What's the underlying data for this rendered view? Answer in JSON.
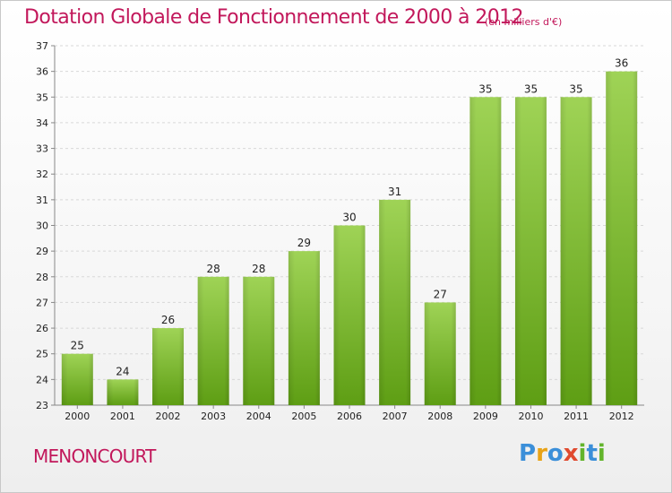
{
  "header": {
    "title": "Dotation Globale de Fonctionnement de 2000 à 2012",
    "unit": "(en milliers d'€)"
  },
  "footer": {
    "commune": "MENONCOURT",
    "logo": "Proxiti"
  },
  "colors": {
    "title": "#c2185b",
    "bar_top": "#9fd356",
    "bar_bottom": "#5e9e14",
    "grid": "#d8d8d8",
    "axis": "#888888",
    "tick_text": "#222222"
  },
  "chart_data": {
    "type": "bar",
    "title": "Dotation Globale de Fonctionnement de 2000 à 2012",
    "xlabel": "",
    "ylabel": "",
    "categories": [
      "2000",
      "2001",
      "2002",
      "2003",
      "2004",
      "2005",
      "2006",
      "2007",
      "2008",
      "2009",
      "2010",
      "2011",
      "2012"
    ],
    "values": [
      25,
      24,
      26,
      28,
      28,
      29,
      30,
      31,
      27,
      35,
      35,
      35,
      36
    ],
    "ylim": [
      23,
      37
    ],
    "yticks": [
      23,
      24,
      25,
      26,
      27,
      28,
      29,
      30,
      31,
      32,
      33,
      34,
      35,
      36,
      37
    ],
    "grid": true,
    "legend": "none",
    "data_labels": true
  }
}
